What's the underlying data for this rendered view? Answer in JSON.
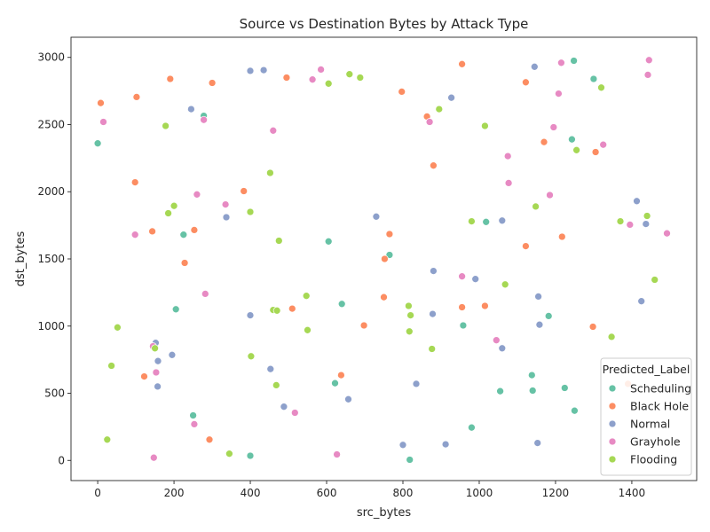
{
  "chart_data": {
    "type": "scatter",
    "title": "Source vs Destination Bytes by Attack Type",
    "xlabel": "src_bytes",
    "ylabel": "dst_bytes",
    "xlim": [
      -70,
      1570
    ],
    "ylim": [
      -150,
      3150
    ],
    "xticks": [
      0,
      200,
      400,
      600,
      800,
      1000,
      1200,
      1400
    ],
    "yticks": [
      0,
      500,
      1000,
      1500,
      2000,
      2500,
      3000
    ],
    "grid": false,
    "legend": {
      "title": "Predicted_Label",
      "placement": "lower-right"
    },
    "series": [
      {
        "name": "Scheduling",
        "color": "#66c2a5",
        "points": [
          [
            0,
            2360
          ],
          [
            225,
            1680
          ],
          [
            278,
            2565
          ],
          [
            205,
            1125
          ],
          [
            250,
            335
          ],
          [
            400,
            35
          ],
          [
            605,
            1630
          ],
          [
            640,
            1165
          ],
          [
            622,
            575
          ],
          [
            765,
            1530
          ],
          [
            818,
            5
          ],
          [
            958,
            1005
          ],
          [
            1018,
            1775
          ],
          [
            980,
            245
          ],
          [
            1055,
            515
          ],
          [
            1138,
            635
          ],
          [
            1140,
            520
          ],
          [
            1182,
            1075
          ],
          [
            1224,
            540
          ],
          [
            1243,
            2390
          ],
          [
            1248,
            2975
          ],
          [
            1250,
            370
          ],
          [
            1300,
            2840
          ]
        ]
      },
      {
        "name": "Black Hole",
        "color": "#fc8d62",
        "points": [
          [
            8,
            2660
          ],
          [
            102,
            2705
          ],
          [
            190,
            2840
          ],
          [
            300,
            2810
          ],
          [
            98,
            2070
          ],
          [
            143,
            1705
          ],
          [
            253,
            1715
          ],
          [
            228,
            1470
          ],
          [
            122,
            625
          ],
          [
            293,
            155
          ],
          [
            383,
            2005
          ],
          [
            495,
            2850
          ],
          [
            510,
            1130
          ],
          [
            638,
            635
          ],
          [
            698,
            1005
          ],
          [
            750,
            1215
          ],
          [
            752,
            1500
          ],
          [
            765,
            1685
          ],
          [
            797,
            2745
          ],
          [
            863,
            2560
          ],
          [
            880,
            2195
          ],
          [
            955,
            2950
          ],
          [
            955,
            1140
          ],
          [
            1015,
            1150
          ],
          [
            1122,
            2815
          ],
          [
            1122,
            1595
          ],
          [
            1170,
            2370
          ],
          [
            1217,
            1665
          ],
          [
            1298,
            995
          ],
          [
            1305,
            2295
          ],
          [
            1390,
            570
          ]
        ]
      },
      {
        "name": "Normal",
        "color": "#8da0cb",
        "points": [
          [
            245,
            2615
          ],
          [
            400,
            2900
          ],
          [
            435,
            2905
          ],
          [
            337,
            1810
          ],
          [
            400,
            1080
          ],
          [
            152,
            875
          ],
          [
            158,
            740
          ],
          [
            195,
            785
          ],
          [
            157,
            550
          ],
          [
            453,
            680
          ],
          [
            488,
            400
          ],
          [
            657,
            455
          ],
          [
            730,
            1815
          ],
          [
            835,
            570
          ],
          [
            800,
            115
          ],
          [
            912,
            120
          ],
          [
            880,
            1410
          ],
          [
            878,
            1090
          ],
          [
            927,
            2700
          ],
          [
            990,
            1350
          ],
          [
            1060,
            1785
          ],
          [
            1060,
            835
          ],
          [
            1145,
            2930
          ],
          [
            1155,
            1220
          ],
          [
            1158,
            1010
          ],
          [
            1153,
            130
          ],
          [
            1413,
            1930
          ],
          [
            1437,
            1760
          ],
          [
            1425,
            1185
          ]
        ]
      },
      {
        "name": "Grayhole",
        "color": "#e78ac3",
        "points": [
          [
            15,
            2520
          ],
          [
            98,
            1680
          ],
          [
            145,
            850
          ],
          [
            153,
            655
          ],
          [
            147,
            20
          ],
          [
            260,
            1980
          ],
          [
            278,
            2535
          ],
          [
            282,
            1240
          ],
          [
            253,
            270
          ],
          [
            335,
            1905
          ],
          [
            460,
            2455
          ],
          [
            517,
            355
          ],
          [
            563,
            2835
          ],
          [
            585,
            2910
          ],
          [
            627,
            45
          ],
          [
            870,
            2520
          ],
          [
            955,
            1370
          ],
          [
            1045,
            895
          ],
          [
            1075,
            2265
          ],
          [
            1077,
            2065
          ],
          [
            1185,
            1975
          ],
          [
            1195,
            2480
          ],
          [
            1208,
            2730
          ],
          [
            1215,
            2960
          ],
          [
            1325,
            2350
          ],
          [
            1395,
            1755
          ],
          [
            1442,
            2870
          ],
          [
            1445,
            2980
          ],
          [
            1492,
            1690
          ]
        ]
      },
      {
        "name": "Flooding",
        "color": "#a6d854",
        "points": [
          [
            25,
            155
          ],
          [
            36,
            705
          ],
          [
            52,
            990
          ],
          [
            150,
            835
          ],
          [
            178,
            2490
          ],
          [
            185,
            1840
          ],
          [
            200,
            1895
          ],
          [
            345,
            50
          ],
          [
            400,
            1850
          ],
          [
            402,
            775
          ],
          [
            452,
            2140
          ],
          [
            460,
            1120
          ],
          [
            468,
            560
          ],
          [
            470,
            1115
          ],
          [
            475,
            1635
          ],
          [
            547,
            1225
          ],
          [
            550,
            970
          ],
          [
            605,
            2805
          ],
          [
            660,
            2875
          ],
          [
            688,
            2850
          ],
          [
            815,
            1150
          ],
          [
            817,
            960
          ],
          [
            820,
            1080
          ],
          [
            876,
            830
          ],
          [
            895,
            2615
          ],
          [
            980,
            1780
          ],
          [
            1015,
            2490
          ],
          [
            1068,
            1310
          ],
          [
            1148,
            1890
          ],
          [
            1255,
            2310
          ],
          [
            1320,
            2775
          ],
          [
            1347,
            920
          ],
          [
            1370,
            1780
          ],
          [
            1440,
            1820
          ],
          [
            1460,
            1345
          ]
        ]
      }
    ]
  }
}
